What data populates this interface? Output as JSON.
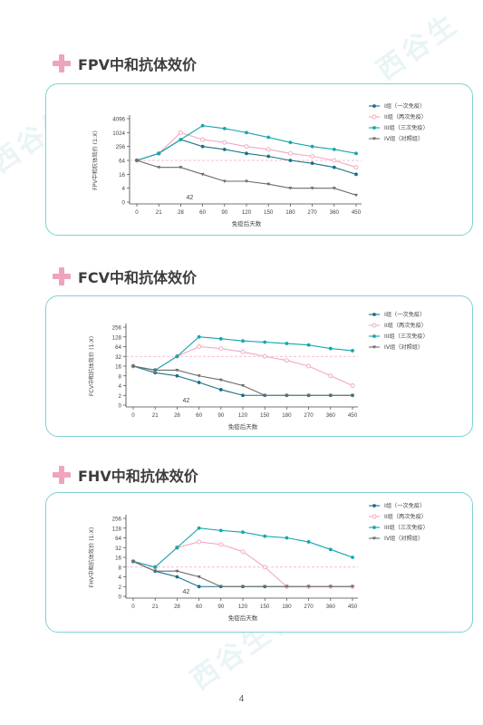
{
  "page_number": "4",
  "watermark": "西谷生物",
  "chart_data": [
    {
      "type": "line",
      "title": "FPV中和抗体效价",
      "xlabel": "免疫后天数",
      "ylabel": "FPV中和抗体效价 (1:X)",
      "x_ticks": [
        "0",
        "21",
        "28",
        "60",
        "90",
        "120",
        "150",
        "180",
        "270",
        "360",
        "450"
      ],
      "y_ticks": [
        "0",
        "4",
        "16",
        "64",
        "256",
        "1024",
        "4096"
      ],
      "y_scale": "log2 (0 at origin)",
      "threshold_value": 64,
      "annotation": "42",
      "legend_position": "right",
      "series": [
        {
          "name": "I组（一次免疫）",
          "color": "#1b6f86",
          "values": [
            64,
            128,
            512,
            256,
            192,
            128,
            96,
            64,
            48,
            32,
            16
          ]
        },
        {
          "name": "II组（两次免疫）",
          "color": "#f2a7c1",
          "values": [
            64,
            128,
            1024,
            512,
            384,
            256,
            192,
            128,
            96,
            64,
            32
          ]
        },
        {
          "name": "III组（三次免疫）",
          "color": "#14a7ad",
          "values": [
            64,
            128,
            512,
            2048,
            1536,
            1024,
            640,
            384,
            256,
            192,
            128
          ]
        },
        {
          "name": "IV组（对照组）",
          "color": "#6b6b6b",
          "values": [
            64,
            32,
            32,
            16,
            8,
            8,
            6,
            4,
            4,
            4,
            2
          ]
        }
      ]
    },
    {
      "type": "line",
      "title": "FCV中和抗体效价",
      "xlabel": "免疫后天数",
      "ylabel": "FCV中和抗体效价 (1:X)",
      "x_ticks": [
        "0",
        "21",
        "28",
        "60",
        "90",
        "120",
        "150",
        "180",
        "270",
        "360",
        "450"
      ],
      "y_ticks": [
        "0",
        "2",
        "4",
        "8",
        "16",
        "32",
        "64",
        "128",
        "256"
      ],
      "y_scale": "log2 (0 at origin)",
      "threshold_value": 32,
      "annotation": "42",
      "legend_position": "right",
      "series": [
        {
          "name": "I组（一次免疫）",
          "color": "#1b6f86",
          "values": [
            16,
            10,
            8,
            5,
            3,
            2,
            2,
            2,
            2,
            2,
            2
          ]
        },
        {
          "name": "II组（两次免疫）",
          "color": "#f2a7c1",
          "values": [
            16,
            12,
            32,
            64,
            56,
            44,
            32,
            24,
            16,
            8,
            4
          ]
        },
        {
          "name": "III组（三次免疫）",
          "color": "#14a7ad",
          "values": [
            16,
            12,
            32,
            128,
            112,
            96,
            88,
            80,
            72,
            56,
            48
          ]
        },
        {
          "name": "IV组（对照组）",
          "color": "#6b6b6b",
          "values": [
            16,
            12,
            12,
            8,
            6,
            4,
            2,
            2,
            2,
            2,
            2
          ]
        }
      ]
    },
    {
      "type": "line",
      "title": "FHV中和抗体效价",
      "xlabel": "免疫后天数",
      "ylabel": "FHV中和抗体效价 (1:X)",
      "x_ticks": [
        "0",
        "21",
        "28",
        "60",
        "90",
        "120",
        "150",
        "180",
        "270",
        "360",
        "450"
      ],
      "y_ticks": [
        "0",
        "2",
        "4",
        "8",
        "16",
        "32",
        "64",
        "128",
        "256"
      ],
      "y_scale": "log2 (0 at origin)",
      "threshold_value": 8,
      "annotation": "42",
      "legend_position": "right",
      "series": [
        {
          "name": "I组（一次免疫）",
          "color": "#1b6f86",
          "values": [
            12,
            6,
            4,
            2,
            2,
            2,
            2,
            2,
            2,
            2,
            2
          ]
        },
        {
          "name": "II组（两次免疫）",
          "color": "#f2a7c1",
          "values": [
            12,
            8,
            32,
            48,
            40,
            24,
            8,
            2,
            2,
            2,
            2
          ]
        },
        {
          "name": "III组（三次免疫）",
          "color": "#14a7ad",
          "values": [
            12,
            8,
            32,
            128,
            108,
            96,
            72,
            64,
            48,
            28,
            16
          ]
        },
        {
          "name": "IV组（对照组）",
          "color": "#6b6b6b",
          "values": [
            12,
            6,
            6,
            4,
            2,
            2,
            2,
            2,
            2,
            2,
            2
          ]
        }
      ]
    }
  ],
  "colors": {
    "panel_border": "#7fd0d6",
    "title_cross": "#f0a3bd",
    "threshold_line": "#f2a7c1",
    "axis": "#444444"
  }
}
